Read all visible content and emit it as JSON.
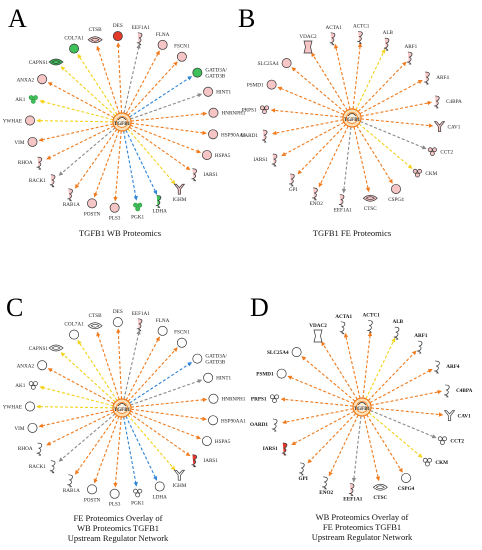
{
  "palette": {
    "orange": "#f07a1c",
    "yellow": "#f2d21a",
    "gray": "#8a8a8a",
    "blue": "#2f84d6",
    "pink_fill": "#f6c6c6",
    "red_fill": "#e33a2c",
    "green_fill": "#3ec05b",
    "green_icon": "#2a9a3f",
    "white_fill": "#ffffff",
    "hub_fill": "#fbe0b8",
    "hub_stroke": "#f07a1c"
  },
  "panels": [
    {
      "id": "A",
      "letter": "A",
      "caption": [
        "TGFB1 WB Proteomics"
      ],
      "hub_label": "TGFB1",
      "colored": true,
      "nodes": [
        {
          "label": "CTSB",
          "shape": "protease",
          "color": "pink",
          "edge": "orange",
          "bold": false
        },
        {
          "label": "DES",
          "shape": "circle",
          "color": "red",
          "edge": "orange",
          "bold": false
        },
        {
          "label": "EEF1A1",
          "shape": "tf",
          "color": "pink",
          "edge": "gray",
          "bold": false
        },
        {
          "label": "FLNA",
          "shape": "circle",
          "color": "pink",
          "edge": "orange",
          "bold": false
        },
        {
          "label": "FSCN1",
          "shape": "circle",
          "color": "pink",
          "edge": "orange",
          "bold": false
        },
        {
          "label": "GATD3A/\nGATD3B",
          "shape": "circle",
          "color": "green",
          "edge": "blue",
          "bold": false
        },
        {
          "label": "HINT1",
          "shape": "circle",
          "color": "pink",
          "edge": "gray",
          "bold": false
        },
        {
          "label": "HNRNPH1",
          "shape": "circle",
          "color": "pink",
          "edge": "orange",
          "bold": false
        },
        {
          "label": "HSP90AA1",
          "shape": "circle",
          "color": "pink",
          "edge": "orange",
          "bold": false
        },
        {
          "label": "HSPA5",
          "shape": "circle",
          "color": "pink",
          "edge": "orange",
          "bold": false
        },
        {
          "label": "IARS1",
          "shape": "tf",
          "color": "pink",
          "edge": "orange",
          "bold": false
        },
        {
          "label": "IGHM",
          "shape": "receptor",
          "color": "pink",
          "edge": "yellow",
          "bold": false
        },
        {
          "label": "LDHA",
          "shape": "tf",
          "color": "green",
          "edge": "blue",
          "bold": false
        },
        {
          "label": "PGK1",
          "shape": "complex",
          "color": "green",
          "edge": "blue",
          "bold": false
        },
        {
          "label": "PLS3",
          "shape": "circle",
          "color": "pink",
          "edge": "orange",
          "bold": false
        },
        {
          "label": "POSTN",
          "shape": "circle",
          "color": "pink",
          "edge": "orange",
          "bold": false
        },
        {
          "label": "RAB1A",
          "shape": "tf",
          "color": "pink",
          "edge": "orange",
          "bold": false
        },
        {
          "label": "RACK1",
          "shape": "tf",
          "color": "pink",
          "edge": "gray",
          "bold": false
        },
        {
          "label": "RHOA",
          "shape": "tf",
          "color": "pink",
          "edge": "orange",
          "bold": false
        },
        {
          "label": "VIM",
          "shape": "circle",
          "color": "pink",
          "edge": "orange",
          "bold": false
        },
        {
          "label": "YWHAE",
          "shape": "circle",
          "color": "pink",
          "edge": "yellow",
          "bold": false
        },
        {
          "label": "AK1",
          "shape": "complex",
          "color": "green",
          "edge": "yellow",
          "bold": false
        },
        {
          "label": "ANXA2",
          "shape": "circle",
          "color": "pink",
          "edge": "orange",
          "bold": false
        },
        {
          "label": "CAPNS1",
          "shape": "protease",
          "color": "green",
          "edge": "yellow",
          "bold": false
        },
        {
          "label": "COL7A1",
          "shape": "circle",
          "color": "green",
          "edge": "yellow",
          "bold": false
        }
      ]
    },
    {
      "id": "B",
      "letter": "B",
      "caption": [
        "TGFB1 FE Proteomics"
      ],
      "hub_label": "TGFB1",
      "colored": true,
      "nodes": [
        {
          "label": "ACTC1",
          "shape": "tf",
          "color": "pink",
          "edge": "orange",
          "bold": false
        },
        {
          "label": "ALB",
          "shape": "tf",
          "color": "pink",
          "edge": "yellow",
          "bold": false
        },
        {
          "label": "ARF1",
          "shape": "tf",
          "color": "pink",
          "edge": "orange",
          "bold": false
        },
        {
          "label": "ARF4",
          "shape": "tf",
          "color": "pink",
          "edge": "orange",
          "bold": false
        },
        {
          "label": "C4BPA",
          "shape": "tf",
          "color": "pink",
          "edge": "orange",
          "bold": false
        },
        {
          "label": "CAV1",
          "shape": "receptor",
          "color": "pink",
          "edge": "orange",
          "bold": false
        },
        {
          "label": "CCT2",
          "shape": "complex",
          "color": "pink",
          "edge": "gray",
          "bold": false
        },
        {
          "label": "CKM",
          "shape": "complex",
          "color": "pink",
          "edge": "yellow",
          "bold": false
        },
        {
          "label": "CSPG4",
          "shape": "circle",
          "color": "pink",
          "edge": "orange",
          "bold": false
        },
        {
          "label": "CTSC",
          "shape": "protease",
          "color": "pink",
          "edge": "orange",
          "bold": false
        },
        {
          "label": "EEF1A1",
          "shape": "tf",
          "color": "pink",
          "edge": "gray",
          "bold": false
        },
        {
          "label": "ENO2",
          "shape": "tf",
          "color": "pink",
          "edge": "orange",
          "bold": false
        },
        {
          "label": "GPI",
          "shape": "tf",
          "color": "pink",
          "edge": "orange",
          "bold": false
        },
        {
          "label": "IARS1",
          "shape": "tf",
          "color": "pink",
          "edge": "orange",
          "bold": false
        },
        {
          "label": "OARD1",
          "shape": "tf",
          "color": "pink",
          "edge": "orange",
          "bold": false
        },
        {
          "label": "PRPS1",
          "shape": "complex",
          "color": "pink",
          "edge": "orange",
          "bold": false
        },
        {
          "label": "PSMD1",
          "shape": "circle",
          "color": "pink",
          "edge": "orange",
          "bold": false
        },
        {
          "label": "SLC25A4",
          "shape": "circle",
          "color": "pink",
          "edge": "orange",
          "bold": false
        },
        {
          "label": "VDAC2",
          "shape": "channel",
          "color": "pink",
          "edge": "orange",
          "bold": false
        },
        {
          "label": "ACTA1",
          "shape": "tf",
          "color": "pink",
          "edge": "orange",
          "bold": false
        }
      ]
    },
    {
      "id": "C",
      "letter": "C",
      "caption": [
        "FE Proteomics Overlay of",
        "WB Proteomics TGFB1",
        "Upstream Regulator Network"
      ],
      "hub_label": "TGFB1",
      "colored": false,
      "nodes": [
        {
          "label": "CTSB",
          "shape": "protease",
          "color": "white",
          "edge": "orange",
          "bold": false
        },
        {
          "label": "DES",
          "shape": "circle",
          "color": "white",
          "edge": "orange",
          "bold": false
        },
        {
          "label": "EEF1A1",
          "shape": "tf",
          "color": "pink",
          "edge": "gray",
          "bold": false
        },
        {
          "label": "FLNA",
          "shape": "circle",
          "color": "white",
          "edge": "orange",
          "bold": false
        },
        {
          "label": "FSCN1",
          "shape": "circle",
          "color": "white",
          "edge": "orange",
          "bold": false
        },
        {
          "label": "GATD3A/\nGATD3B",
          "shape": "circle",
          "color": "white",
          "edge": "blue",
          "bold": false
        },
        {
          "label": "HINT1",
          "shape": "circle",
          "color": "white",
          "edge": "gray",
          "bold": false
        },
        {
          "label": "HNRNPH1",
          "shape": "circle",
          "color": "white",
          "edge": "orange",
          "bold": false
        },
        {
          "label": "HSP90AA1",
          "shape": "circle",
          "color": "white",
          "edge": "orange",
          "bold": false
        },
        {
          "label": "HSPA5",
          "shape": "circle",
          "color": "white",
          "edge": "orange",
          "bold": false
        },
        {
          "label": "IARS1",
          "shape": "tf",
          "color": "red",
          "edge": "orange",
          "bold": false
        },
        {
          "label": "IGHM",
          "shape": "receptor",
          "color": "white",
          "edge": "yellow",
          "bold": false
        },
        {
          "label": "LDHA",
          "shape": "circle",
          "color": "white",
          "edge": "blue",
          "bold": false
        },
        {
          "label": "PGK1",
          "shape": "complex",
          "color": "white",
          "edge": "blue",
          "bold": false
        },
        {
          "label": "PLS3",
          "shape": "circle",
          "color": "white",
          "edge": "orange",
          "bold": false
        },
        {
          "label": "POSTN",
          "shape": "circle",
          "color": "white",
          "edge": "orange",
          "bold": false
        },
        {
          "label": "RAB1A",
          "shape": "tf",
          "color": "white",
          "edge": "orange",
          "bold": false
        },
        {
          "label": "RACK1",
          "shape": "tf",
          "color": "white",
          "edge": "gray",
          "bold": false
        },
        {
          "label": "RHOA",
          "shape": "tf",
          "color": "white",
          "edge": "orange",
          "bold": false
        },
        {
          "label": "VIM",
          "shape": "circle",
          "color": "white",
          "edge": "orange",
          "bold": false
        },
        {
          "label": "YWHAE",
          "shape": "circle",
          "color": "white",
          "edge": "yellow",
          "bold": false
        },
        {
          "label": "AK1",
          "shape": "complex",
          "color": "white",
          "edge": "yellow",
          "bold": false
        },
        {
          "label": "ANXA2",
          "shape": "circle",
          "color": "white",
          "edge": "orange",
          "bold": false
        },
        {
          "label": "CAPNS1",
          "shape": "protease",
          "color": "white",
          "edge": "yellow",
          "bold": false
        },
        {
          "label": "COL7A1",
          "shape": "circle",
          "color": "white",
          "edge": "yellow",
          "bold": false
        }
      ]
    },
    {
      "id": "D",
      "letter": "D",
      "caption": [
        "WB Proteomics Overlay of",
        "FE Proteomics TGFB1",
        "Upstream Regulator Network"
      ],
      "hub_label": "TGFB1",
      "colored": false,
      "nodes": [
        {
          "label": "ACTC1",
          "shape": "tf",
          "color": "white",
          "edge": "orange",
          "bold": true
        },
        {
          "label": "ALB",
          "shape": "tf",
          "color": "white",
          "edge": "yellow",
          "bold": true
        },
        {
          "label": "ARF1",
          "shape": "tf",
          "color": "white",
          "edge": "orange",
          "bold": true
        },
        {
          "label": "ARF4",
          "shape": "tf",
          "color": "white",
          "edge": "orange",
          "bold": true
        },
        {
          "label": "C4BPA",
          "shape": "tf",
          "color": "white",
          "edge": "orange",
          "bold": true
        },
        {
          "label": "CAV1",
          "shape": "receptor",
          "color": "white",
          "edge": "orange",
          "bold": true
        },
        {
          "label": "CCT2",
          "shape": "complex",
          "color": "white",
          "edge": "gray",
          "bold": true
        },
        {
          "label": "CKM",
          "shape": "complex",
          "color": "white",
          "edge": "yellow",
          "bold": true
        },
        {
          "label": "CSPG4",
          "shape": "circle",
          "color": "white",
          "edge": "orange",
          "bold": true
        },
        {
          "label": "CTSC",
          "shape": "protease",
          "color": "white",
          "edge": "orange",
          "bold": true
        },
        {
          "label": "EEF1A1",
          "shape": "tf",
          "color": "pink",
          "edge": "gray",
          "bold": true
        },
        {
          "label": "ENO2",
          "shape": "tf",
          "color": "white",
          "edge": "orange",
          "bold": true
        },
        {
          "label": "GPI",
          "shape": "tf",
          "color": "white",
          "edge": "orange",
          "bold": true
        },
        {
          "label": "IARS1",
          "shape": "tf",
          "color": "red",
          "edge": "orange",
          "bold": true
        },
        {
          "label": "OARD1",
          "shape": "tf",
          "color": "white",
          "edge": "orange",
          "bold": true
        },
        {
          "label": "PRPS1",
          "shape": "complex",
          "color": "white",
          "edge": "orange",
          "bold": true
        },
        {
          "label": "PSMD1",
          "shape": "circle",
          "color": "white",
          "edge": "orange",
          "bold": true
        },
        {
          "label": "SLC25A4",
          "shape": "circle",
          "color": "white",
          "edge": "orange",
          "bold": true
        },
        {
          "label": "VDAC2",
          "shape": "channel",
          "color": "white",
          "edge": "orange",
          "bold": true
        },
        {
          "label": "ACTA1",
          "shape": "tf",
          "color": "white",
          "edge": "orange",
          "bold": true
        }
      ]
    }
  ]
}
